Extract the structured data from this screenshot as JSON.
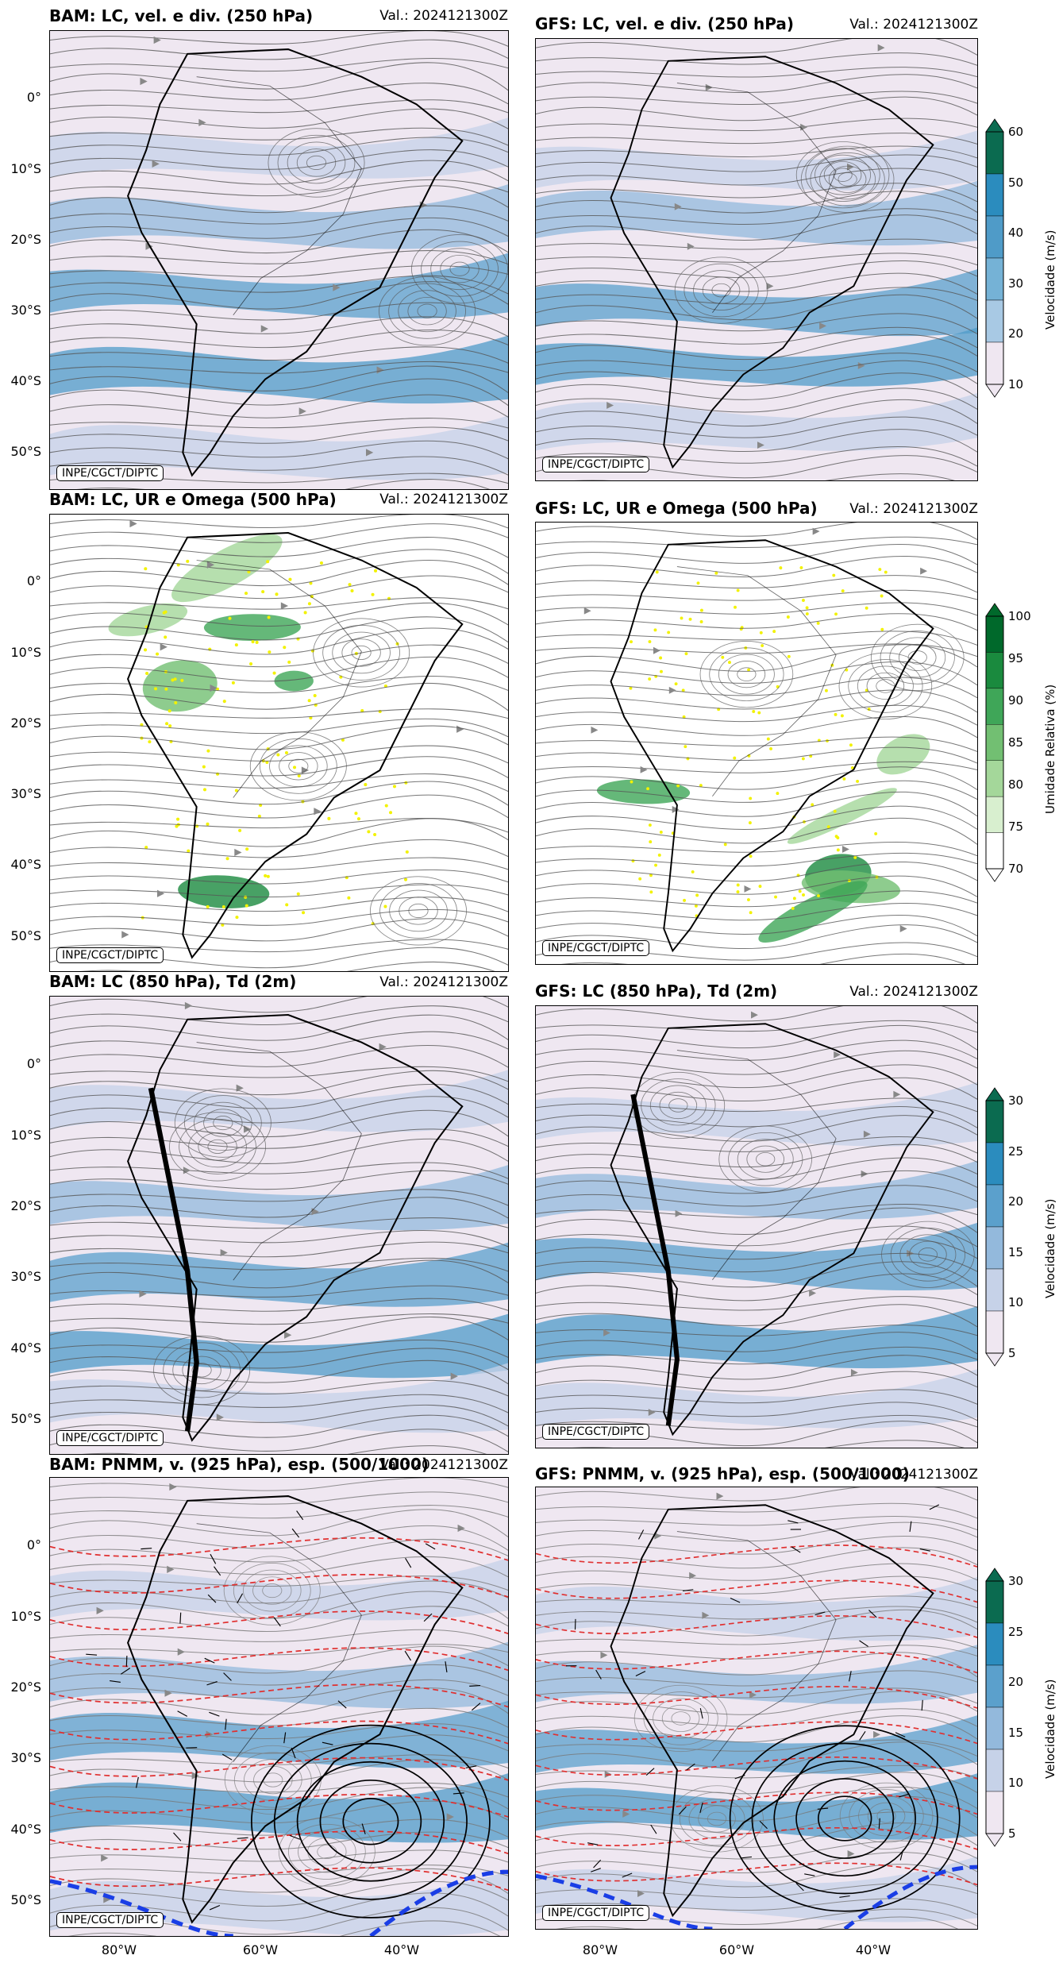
{
  "valid_time": "Val.: 2024121300Z",
  "credit": "INPE/CGCT/DIPTC",
  "lat_labels": [
    "0°",
    "10°S",
    "20°S",
    "30°S",
    "40°S",
    "50°S"
  ],
  "lon_labels": [
    "80°W",
    "60°W",
    "40°W"
  ],
  "rows": [
    {
      "left_title": "BAM: LC, vel. e div. (250 hPa)",
      "right_title": "GFS: LC, vel. e div. (250 hPa)",
      "palette": "blue",
      "colorbar": {
        "label": "Velocidade (m/s)",
        "ticks": [
          "60",
          "50",
          "40",
          "30",
          "20",
          "10"
        ],
        "colors": [
          "#0b6b50",
          "#2b8cbe",
          "#4f9bc8",
          "#75b2d6",
          "#a8c9e4",
          "#efe7f1"
        ]
      }
    },
    {
      "left_title": "BAM: LC, UR e Omega (500 hPa)",
      "right_title": "GFS: LC, UR e Omega (500 hPa)",
      "palette": "green",
      "colorbar": {
        "label": "Umidade Relativa (%)",
        "ticks": [
          "100",
          "95",
          "90",
          "85",
          "80",
          "75",
          "70"
        ],
        "colors": [
          "#00692b",
          "#1a8a3e",
          "#3fa658",
          "#72bf72",
          "#a4d79a",
          "#d8efcf",
          "#ffffff"
        ]
      }
    },
    {
      "left_title": "BAM: LC (850 hPa), Td (2m)",
      "right_title": "GFS: LC (850 hPa), Td (2m)",
      "palette": "blue",
      "colorbar": {
        "label": "Velocidade (m/s)",
        "ticks": [
          "30",
          "25",
          "20",
          "15",
          "10",
          "5"
        ],
        "colors": [
          "#0b6b50",
          "#2b8cbe",
          "#5ba0cc",
          "#93b9dc",
          "#c6d2e8",
          "#efe7f1"
        ]
      }
    },
    {
      "left_title": "BAM: PNMM, v. (925 hPa), esp. (500/1000)",
      "right_title": "GFS: PNMM, v. (925 hPa), esp. (500/1000)",
      "palette": "pnmm",
      "colorbar": {
        "label": "Velocidade (m/s)",
        "ticks": [
          "30",
          "25",
          "20",
          "15",
          "10",
          "5"
        ],
        "colors": [
          "#0b6b50",
          "#2b8cbe",
          "#5ba0cc",
          "#93b9dc",
          "#c6d2e8",
          "#efe7f1"
        ]
      }
    }
  ]
}
